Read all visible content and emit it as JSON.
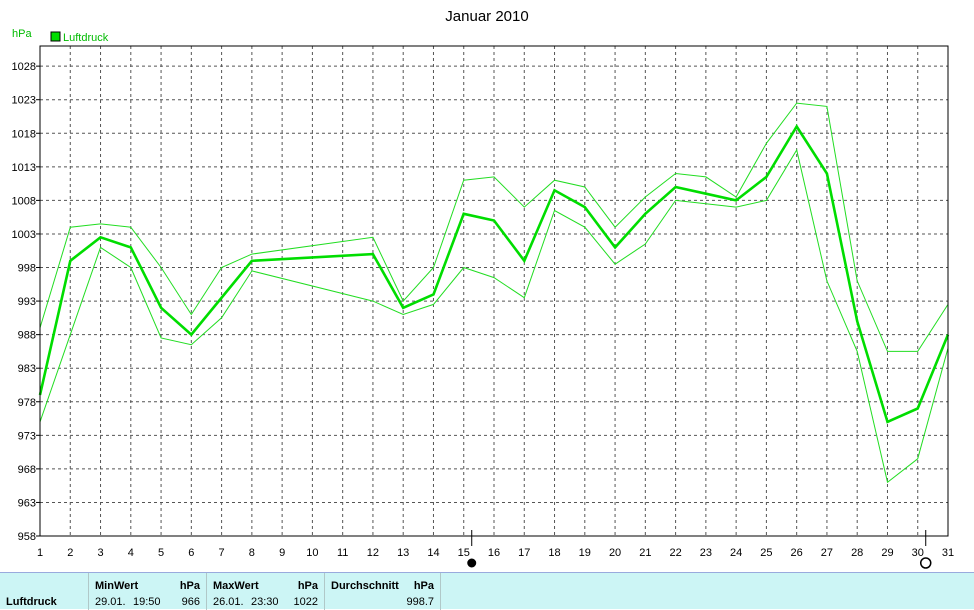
{
  "title": "Januar 2010",
  "unit_label": "hPa",
  "legend": {
    "label": "Luftdruck",
    "color": "#00dd00"
  },
  "colors": {
    "line": "#00dd00",
    "minmax": "#22dd22",
    "grid": "#555555",
    "stats_bg": "#ccf5f5"
  },
  "chart_data": {
    "type": "line",
    "title": "Januar 2010",
    "ylabel": "hPa",
    "ylim": [
      958,
      1031
    ],
    "yticks": [
      958,
      963,
      968,
      973,
      978,
      983,
      988,
      993,
      998,
      1003,
      1008,
      1013,
      1018,
      1023,
      1028
    ],
    "x": [
      1,
      2,
      3,
      4,
      5,
      6,
      7,
      8,
      9,
      10,
      11,
      12,
      13,
      14,
      15,
      16,
      17,
      18,
      19,
      20,
      21,
      22,
      23,
      24,
      25,
      26,
      27,
      28,
      29,
      30,
      31
    ],
    "grid": true,
    "legend_position": "top-left",
    "series": [
      {
        "name": "Luftdruck",
        "role": "mean",
        "x": [
          1,
          2,
          3,
          4,
          5,
          6,
          8,
          12,
          13,
          14,
          15,
          16,
          17,
          18,
          19,
          20,
          21,
          22,
          23,
          24,
          25,
          26,
          27,
          28,
          29,
          30,
          31
        ],
        "values": [
          979,
          999,
          1002.5,
          1001,
          992,
          988,
          999,
          1000,
          992,
          994,
          1006,
          1005,
          999,
          1009.5,
          1007,
          1001,
          1006,
          1010,
          1009,
          1008,
          1011.5,
          1019,
          1012,
          990,
          975,
          977,
          988
        ]
      },
      {
        "role": "max",
        "x": [
          1,
          2,
          3,
          4,
          5,
          6,
          7,
          8,
          12,
          13,
          14,
          15,
          16,
          17,
          18,
          19,
          20,
          21,
          22,
          23,
          24,
          25,
          26,
          27,
          28,
          29,
          30,
          31
        ],
        "values": [
          989,
          1004,
          1004.5,
          1004,
          998,
          991,
          998,
          1000,
          1002.5,
          993,
          998,
          1011,
          1011.5,
          1007,
          1011,
          1010,
          1004,
          1008.5,
          1012,
          1011.5,
          1008.5,
          1016.5,
          1022.5,
          1022,
          996,
          985.5,
          985.5,
          992.5
        ]
      },
      {
        "role": "min",
        "x": [
          1,
          2,
          3,
          4,
          5,
          6,
          7,
          8,
          12,
          13,
          14,
          15,
          16,
          17,
          18,
          19,
          20,
          21,
          22,
          23,
          24,
          25,
          26,
          27,
          28,
          29,
          30,
          31
        ],
        "values": [
          975,
          988,
          1001,
          998,
          987.5,
          986.5,
          990.5,
          997.5,
          993,
          991,
          992.5,
          998,
          996.5,
          993.5,
          1006.5,
          1004,
          998.5,
          1001.5,
          1008,
          1007.5,
          1007,
          1008,
          1015.5,
          996,
          985.5,
          966,
          969.5,
          986
        ]
      }
    ],
    "markers": [
      {
        "day": 15,
        "symbol": "full-moon-filled"
      },
      {
        "day": 30,
        "symbol": "new-moon-open"
      }
    ]
  },
  "stats": {
    "row_label": "Luftdruck",
    "min": {
      "header": "MinWert",
      "unit": "hPa",
      "date": "29.01.",
      "time": "19:50",
      "value": "966"
    },
    "max": {
      "header": "MaxWert",
      "unit": "hPa",
      "date": "26.01.",
      "time": "23:30",
      "value": "1022"
    },
    "avg": {
      "header": "Durchschnitt",
      "unit": "hPa",
      "value": "998.7"
    }
  }
}
